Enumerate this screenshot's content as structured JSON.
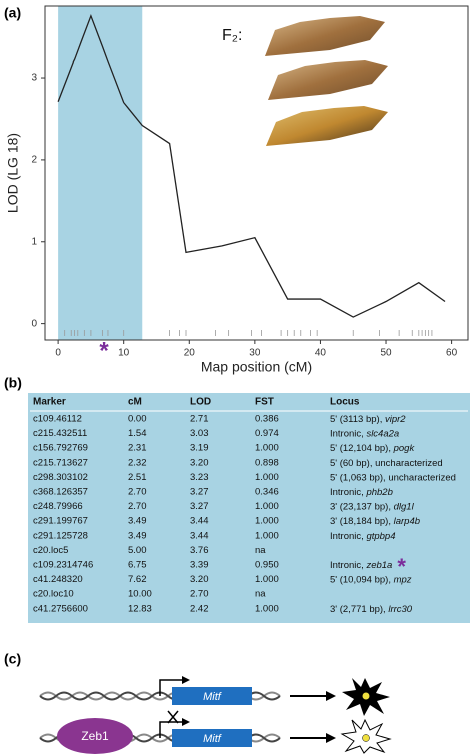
{
  "panels": {
    "a": "(a)",
    "b": "(b)",
    "c": "(c)"
  },
  "chart_data": {
    "type": "line",
    "xlabel": "Map position (cM)",
    "ylabel": "LOD (LG 18)",
    "x": [
      0,
      1.54,
      2.31,
      2.32,
      2.51,
      2.7,
      3.49,
      5,
      6.75,
      7.62,
      10,
      12.83,
      17,
      19.5,
      25,
      30,
      35,
      40,
      45,
      50,
      55,
      59
    ],
    "values": [
      2.71,
      3.03,
      3.19,
      3.2,
      3.23,
      3.27,
      3.44,
      3.76,
      3.39,
      3.2,
      2.7,
      2.42,
      2.2,
      0.87,
      0.95,
      1.05,
      0.3,
      0.3,
      0.08,
      0.27,
      0.5,
      0.27
    ],
    "color": "#222222",
    "xlim": [
      -2,
      62.5
    ],
    "ylim": [
      -0.2,
      3.88
    ],
    "xticks": [
      0,
      10,
      20,
      30,
      40,
      50,
      60
    ],
    "yticks": [
      0,
      1,
      2,
      3
    ],
    "shaded_range": [
      0,
      12.83
    ],
    "shade_color": "#a8d3e3",
    "rug": [
      1,
      2,
      2.5,
      3,
      4,
      5,
      6.75,
      7.6,
      10,
      17,
      18.5,
      19.5,
      24,
      26,
      29.5,
      31,
      34,
      35,
      36,
      37,
      38.5,
      39.5,
      45,
      49,
      52,
      54,
      55,
      55.5,
      56,
      56.5,
      57
    ],
    "annotation": {
      "text": "*",
      "x": 7,
      "color": "#7b2d9b"
    },
    "inset_label": "F₂:"
  },
  "table": {
    "headers": [
      "Marker",
      "cM",
      "LOD",
      "FST",
      "Locus"
    ],
    "rows": [
      [
        "c109.46112",
        "0.00",
        "2.71",
        "0.386",
        {
          "prefix": "5' (3113 bp), ",
          "gene": "vipr2"
        }
      ],
      [
        "c215.432511",
        "1.54",
        "3.03",
        "0.974",
        {
          "prefix": "Intronic, ",
          "gene": "slc4a2a"
        }
      ],
      [
        "c156.792769",
        "2.31",
        "3.19",
        "1.000",
        {
          "prefix": "5' (12,104 bp), ",
          "gene": "pogk"
        }
      ],
      [
        "c215.713627",
        "2.32",
        "3.20",
        "0.898",
        {
          "prefix": "5' (60 bp), uncharacterized"
        }
      ],
      [
        "c298.303102",
        "2.51",
        "3.23",
        "1.000",
        {
          "prefix": "5' (1,063 bp), uncharacterized"
        }
      ],
      [
        "c368.126357",
        "2.70",
        "3.27",
        "0.346",
        {
          "prefix": "Intronic, ",
          "gene": "phb2b"
        }
      ],
      [
        "c248.79966",
        "2.70",
        "3.27",
        "1.000",
        {
          "prefix": "3' (23,137 bp), ",
          "gene": "dlg1l"
        }
      ],
      [
        "c291.199767",
        "3.49",
        "3.44",
        "1.000",
        {
          "prefix": "3' (18,184 bp), ",
          "gene": "larp4b"
        }
      ],
      [
        "c291.125728",
        "3.49",
        "3.44",
        "1.000",
        {
          "prefix": "Intronic, ",
          "gene": "gtpbp4"
        }
      ],
      [
        "c20.loc5",
        "5.00",
        "3.76",
        "na",
        {
          "prefix": ""
        }
      ],
      [
        "c109.2314746",
        "6.75",
        "3.39",
        "0.950",
        {
          "prefix": "Intronic, ",
          "gene": "zeb1a",
          "note": "*"
        }
      ],
      [
        "c41.248320",
        "7.62",
        "3.20",
        "1.000",
        {
          "prefix": "5' (10,094 bp), ",
          "gene": "mpz"
        }
      ],
      [
        "c20.loc10",
        "10.00",
        "2.70",
        "na",
        {
          "prefix": ""
        }
      ],
      [
        "c41.2756600",
        "12.83",
        "2.42",
        "1.000",
        {
          "prefix": "3' (2,771 bp), ",
          "gene": "lrrc30"
        }
      ]
    ]
  },
  "diagram": {
    "gene": "Mitf",
    "repressor": "Zeb1"
  }
}
